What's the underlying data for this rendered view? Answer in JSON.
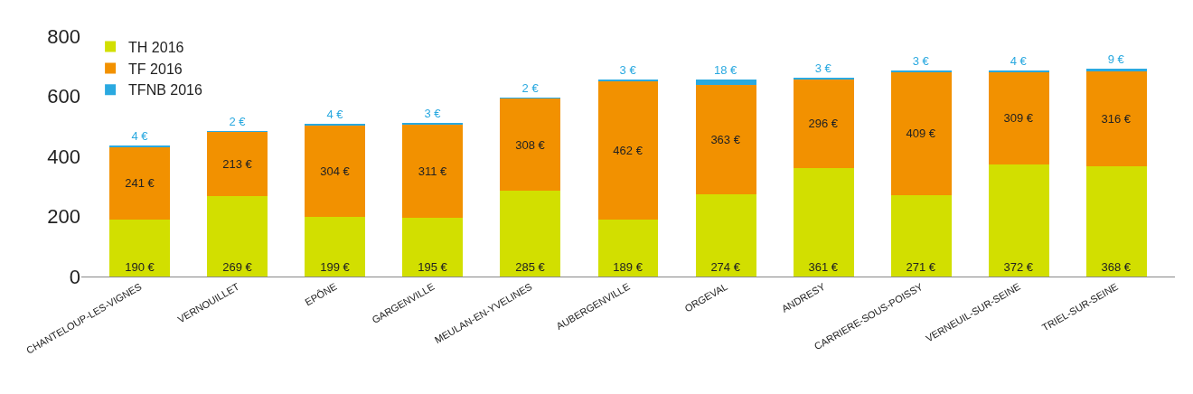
{
  "chart_data": {
    "type": "bar",
    "stacked": true,
    "categories": [
      "CHANTELOUP-LES-VIGNES",
      "VERNOUILLET",
      "EPÔNE",
      "GARGENVILLE",
      "MEULAN-EN-YVELINES",
      "AUBERGENVILLE",
      "ORGEVAL",
      "ANDRESY",
      "CARRIERE-SOUS-POISSY",
      "VERNEUIL-SUR-SEINE",
      "TRIEL-SUR-SEINE"
    ],
    "series": [
      {
        "name": "TH 2016",
        "color": "#d2df00",
        "values": [
          190,
          269,
          199,
          195,
          285,
          189,
          274,
          361,
          271,
          372,
          368
        ],
        "value_labels": [
          "190 €",
          "269 €",
          "199 €",
          "195 €",
          "285 €",
          "189 €",
          "274 €",
          "361 €",
          "271 €",
          "372 €",
          "368 €"
        ]
      },
      {
        "name": "TF 2016",
        "color": "#f29100",
        "values": [
          241,
          213,
          304,
          311,
          308,
          462,
          363,
          296,
          409,
          309,
          316
        ],
        "value_labels": [
          "241 €",
          "213 €",
          "304 €",
          "311 €",
          "308 €",
          "462 €",
          "363 €",
          "296 €",
          "409 €",
          "309 €",
          "316 €"
        ]
      },
      {
        "name": "TFNB 2016",
        "color": "#2aa9e0",
        "values": [
          4,
          2,
          4,
          3,
          2,
          3,
          18,
          3,
          3,
          4,
          9
        ],
        "value_labels": [
          "4 €",
          "2 €",
          "4 €",
          "3 €",
          "2 €",
          "3 €",
          "18 €",
          "3 €",
          "3 €",
          "4 €",
          "9 €"
        ]
      }
    ],
    "ylim": [
      0,
      800
    ],
    "yticks": [
      0,
      200,
      400,
      600,
      800
    ],
    "legend": "top left"
  }
}
